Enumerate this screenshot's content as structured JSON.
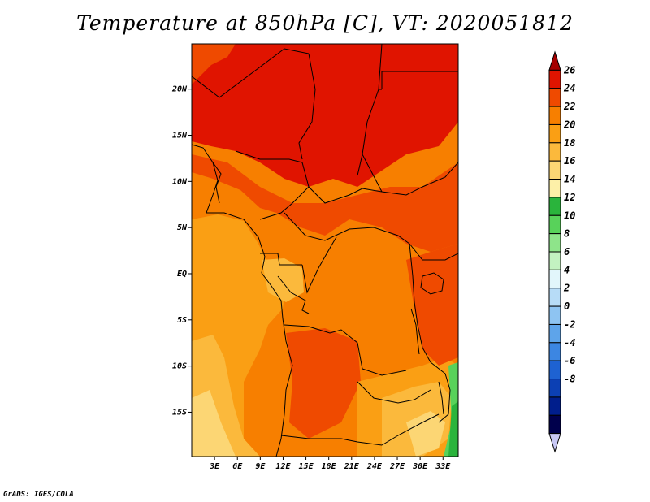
{
  "title": "Temperature at 850hPa [C], VT: 2020051812",
  "credit": "GrADS: IGES/COLA",
  "map": {
    "x_ticks": [
      "3E",
      "6E",
      "9E",
      "12E",
      "15E",
      "18E",
      "21E",
      "24E",
      "27E",
      "30E",
      "33E"
    ],
    "y_ticks": [
      "20N",
      "15N",
      "10N",
      "5N",
      "EQ",
      "5S",
      "10S",
      "15S"
    ]
  },
  "colorbar": {
    "labels": [
      "26",
      "24",
      "22",
      "20",
      "18",
      "16",
      "14",
      "12",
      "10",
      "8",
      "6",
      "4",
      "2",
      "0",
      "-2",
      "-4",
      "-6",
      "-8"
    ],
    "colors": [
      "#a50000",
      "#e01400",
      "#ef4a00",
      "#f77f00",
      "#fa9f14",
      "#fbb93c",
      "#fcd674",
      "#fdf0a8",
      "#2ab43c",
      "#58d25a",
      "#8ee48a",
      "#c3f2c1",
      "#e2f6fb",
      "#b7dcf7",
      "#8ec4f2",
      "#5ea4ea",
      "#3c86e2",
      "#1e62d2",
      "#0c40b4",
      "#001e8c",
      "#00004c",
      "#c8c8f5"
    ]
  }
}
